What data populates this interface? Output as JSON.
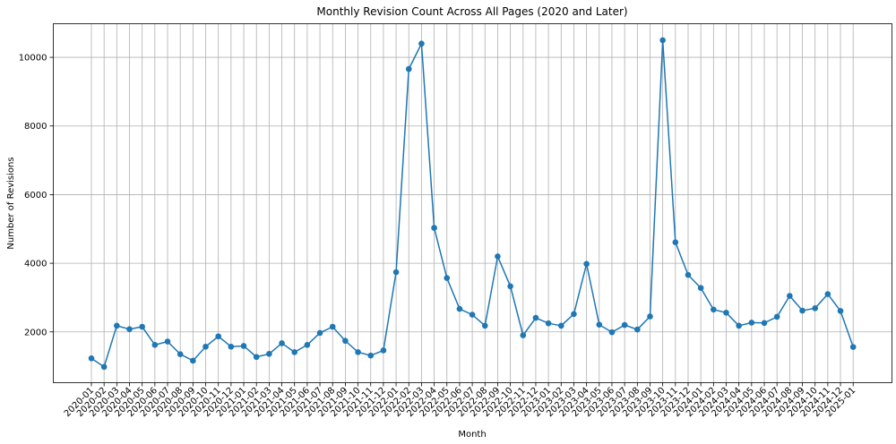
{
  "chart_data": {
    "type": "line",
    "title": "Monthly Revision Count Across All Pages (2020 and Later)",
    "xlabel": "Month",
    "ylabel": "Number of Revisions",
    "grid": true,
    "ylim": [
      520,
      10980
    ],
    "yticks": [
      2000,
      4000,
      6000,
      8000,
      10000
    ],
    "color": "#1f77b4",
    "categories": [
      "2020-01",
      "2020-02",
      "2020-03",
      "2020-04",
      "2020-05",
      "2020-06",
      "2020-07",
      "2020-08",
      "2020-09",
      "2020-10",
      "2020-11",
      "2020-12",
      "2021-01",
      "2021-02",
      "2021-03",
      "2021-04",
      "2021-05",
      "2021-06",
      "2021-07",
      "2021-08",
      "2021-09",
      "2021-10",
      "2021-11",
      "2021-12",
      "2022-01",
      "2022-02",
      "2022-03",
      "2022-04",
      "2022-05",
      "2022-06",
      "2022-07",
      "2022-08",
      "2022-09",
      "2022-10",
      "2022-11",
      "2022-12",
      "2023-01",
      "2023-02",
      "2023-03",
      "2023-04",
      "2023-05",
      "2023-06",
      "2023-07",
      "2023-08",
      "2023-09",
      "2023-10",
      "2023-11",
      "2023-12",
      "2024-01",
      "2024-02",
      "2024-03",
      "2024-04",
      "2024-05",
      "2024-06",
      "2024-07",
      "2024-08",
      "2024-09",
      "2024-10",
      "2024-11",
      "2024-12",
      "2025-01"
    ],
    "values": [
      1230,
      980,
      2180,
      2080,
      2150,
      1620,
      1720,
      1350,
      1160,
      1570,
      1870,
      1570,
      1590,
      1270,
      1360,
      1670,
      1410,
      1620,
      1970,
      2150,
      1740,
      1410,
      1310,
      1460,
      3740,
      9660,
      10400,
      5030,
      3570,
      2670,
      2500,
      2180,
      4200,
      3330,
      1900,
      2410,
      2250,
      2180,
      2520,
      3980,
      2210,
      1990,
      2200,
      2070,
      2450,
      10500,
      4610,
      3660,
      3280,
      2650,
      2560,
      2180,
      2270,
      2260,
      2440,
      3050,
      2620,
      2690,
      3100,
      2610,
      1560
    ]
  }
}
